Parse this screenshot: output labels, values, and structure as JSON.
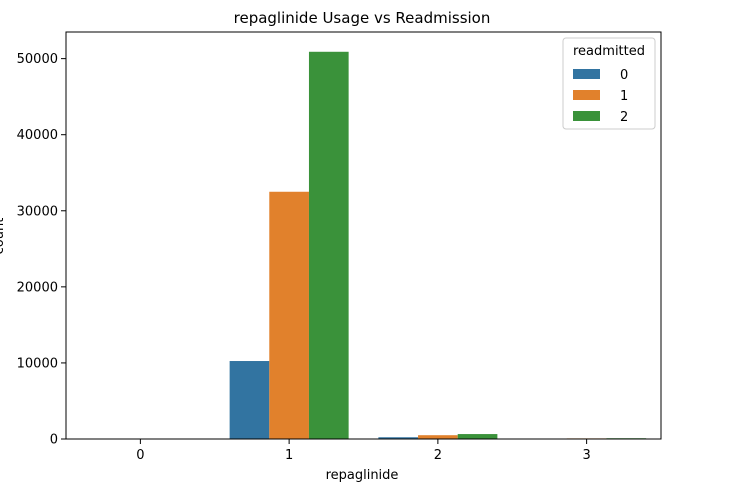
{
  "chart_data": {
    "type": "bar",
    "title": "repaglinide Usage vs Readmission",
    "xlabel": "repaglinide",
    "ylabel": "count",
    "categories": [
      "0",
      "1",
      "2",
      "3"
    ],
    "ylim": [
      0,
      53500
    ],
    "yticks": [
      0,
      10000,
      20000,
      30000,
      40000,
      50000
    ],
    "legend": {
      "title": "readmitted",
      "placement": "top-right"
    },
    "series": [
      {
        "name": "0",
        "color": "#3274a1",
        "values": [
          0,
          10250,
          230,
          10
        ]
      },
      {
        "name": "1",
        "color": "#e1812c",
        "values": [
          0,
          32500,
          500,
          80
        ]
      },
      {
        "name": "2",
        "color": "#3a923a",
        "values": [
          0,
          50900,
          650,
          100
        ]
      }
    ],
    "grid": false
  }
}
